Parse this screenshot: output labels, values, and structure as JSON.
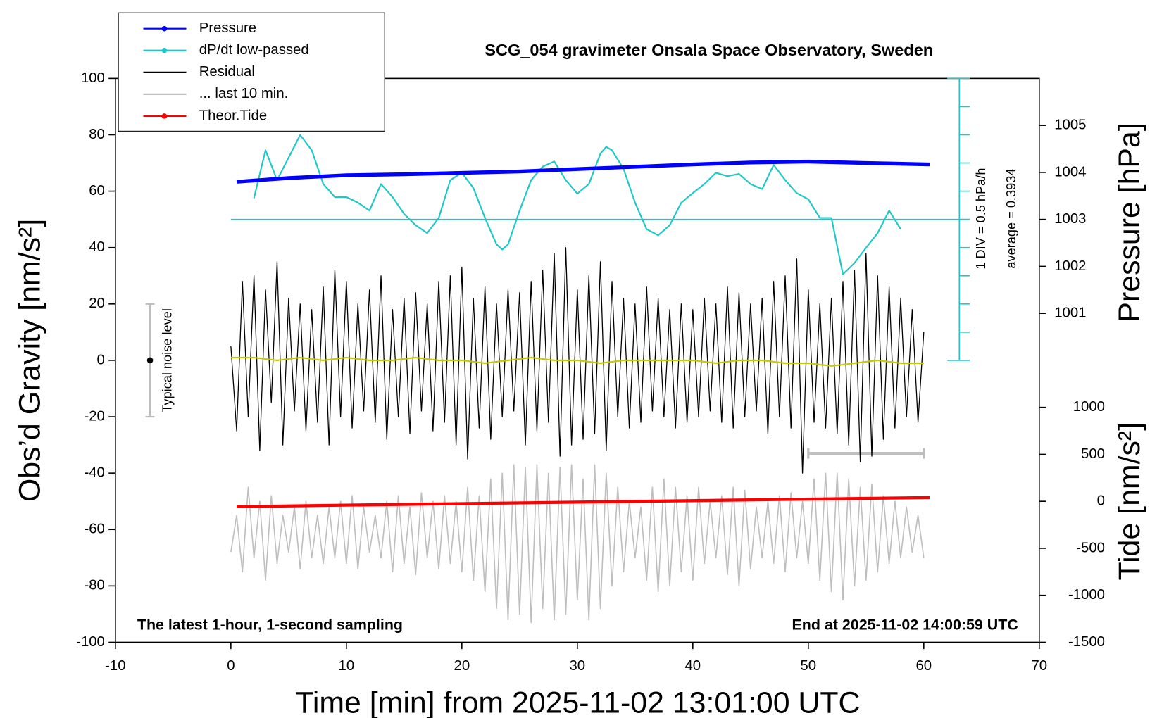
{
  "chart_data": {
    "type": "line",
    "title": "SCG_054 gravimeter Onsala Space Observatory, Sweden",
    "x_label": "Time [min] from 2025-11-02 13:01:00 UTC",
    "y_label": "Obs’d Gravity [nm/s²]",
    "y2_label": "Pressure [hPa]",
    "y3_label": "Tide [nm/s²]",
    "annotations": [
      "The latest 1-hour, 1-second sampling",
      "End at 2025-11-02 14:00:59 UTC",
      "1 DIV = 0.5 hPa/h",
      "average = 0.3934"
    ],
    "xlim": [
      -10,
      70
    ],
    "xticks": [
      -10,
      0,
      10,
      20,
      30,
      40,
      50,
      60,
      70
    ],
    "ylim": [
      -100,
      100
    ],
    "yticks": [
      -100,
      -80,
      -60,
      -40,
      -20,
      0,
      20,
      40,
      60,
      80,
      100
    ],
    "y2lim": [
      994,
      1006
    ],
    "y2ticks": [
      1001,
      1002,
      1003,
      1004,
      1005
    ],
    "y3lim": [
      -1500,
      4500
    ],
    "y3ticks": [
      -1500,
      -1000,
      -500,
      0,
      500,
      1000
    ],
    "y4lim": [
      -2.1066,
      2.8934
    ],
    "y4ticks": [
      -2.1066,
      -1.6066,
      -1.1066,
      -0.6066,
      -0.1066,
      0.3934,
      0.8934,
      1.3934,
      1.8934,
      2.3934,
      2.8934
    ],
    "y4_average": 0.3934,
    "legend": "upper left",
    "noise_level": {
      "x": -7,
      "range": [
        -20,
        20
      ],
      "label": "Typical noise level"
    },
    "window": {
      "x": [
        50,
        60
      ],
      "y": -33
    },
    "x": [
      0,
      0.5,
      1,
      1.5,
      2,
      2.5,
      3,
      3.5,
      4,
      4.5,
      5,
      5.5,
      6,
      6.5,
      7,
      7.5,
      8,
      8.5,
      9,
      9.5,
      10,
      10.5,
      11,
      11.5,
      12,
      12.5,
      13,
      13.5,
      14,
      14.5,
      15,
      15.5,
      16,
      16.5,
      17,
      17.5,
      18,
      18.5,
      19,
      19.5,
      20,
      20.5,
      21,
      21.5,
      22,
      22.5,
      23,
      23.5,
      24,
      24.5,
      25,
      25.5,
      26,
      26.5,
      27,
      27.5,
      28,
      28.5,
      29,
      29.5,
      30,
      30.5,
      31,
      31.5,
      32,
      32.5,
      33,
      33.5,
      34,
      34.5,
      35,
      35.5,
      36,
      36.5,
      37,
      37.5,
      38,
      38.5,
      39,
      39.5,
      40,
      40.5,
      41,
      41.5,
      42,
      42.5,
      43,
      43.5,
      44,
      44.5,
      45,
      45.5,
      46,
      46.5,
      47,
      47.5,
      48,
      48.5,
      49,
      49.5,
      50,
      50.5,
      51,
      51.5,
      52,
      52.5,
      53,
      53.5,
      54,
      54.5,
      55,
      55.5,
      56,
      56.5,
      57,
      57.5,
      58,
      58.5,
      59,
      59.5,
      60
    ],
    "series": [
      {
        "name": "Pressure",
        "color": "#0000ff",
        "axis": "y2",
        "marker": "circle",
        "width": 5,
        "x": [
          0.5,
          5,
          10,
          15,
          20,
          25,
          30,
          35,
          40,
          45,
          50,
          55,
          60.5
        ],
        "values": [
          1003.8,
          1003.88,
          1003.94,
          1003.96,
          1003.99,
          1004.02,
          1004.07,
          1004.12,
          1004.17,
          1004.21,
          1004.23,
          1004.2,
          1004.17
        ]
      },
      {
        "name": "dP/dt low-passed",
        "color": "#1ec8c8",
        "axis": "y4",
        "marker": "circle",
        "width": 2,
        "x": [
          2,
          3,
          4,
          6,
          7,
          8,
          9,
          10,
          11,
          12,
          13,
          14,
          15,
          16,
          17,
          18,
          19,
          20,
          21,
          22,
          23,
          23.5,
          24,
          25,
          26,
          27,
          28,
          29,
          30,
          31,
          32,
          32.5,
          33,
          34,
          35,
          36,
          37,
          38,
          39,
          40,
          41,
          42,
          43,
          44,
          45,
          46,
          47,
          48,
          49,
          50,
          51,
          52,
          53,
          54,
          55,
          56,
          57,
          58
        ],
        "values": [
          0.77,
          1.62,
          1.09,
          1.89,
          1.62,
          1.02,
          0.79,
          0.79,
          0.69,
          0.55,
          1.02,
          0.79,
          0.49,
          0.29,
          0.15,
          0.42,
          1.09,
          1.22,
          0.95,
          0.42,
          -0.05,
          -0.14,
          -0.05,
          0.55,
          1.09,
          1.33,
          1.42,
          1.09,
          0.85,
          1.02,
          1.56,
          1.68,
          1.62,
          1.29,
          0.69,
          0.22,
          0.11,
          0.29,
          0.69,
          0.86,
          1.02,
          1.22,
          1.16,
          1.2,
          1.02,
          0.93,
          1.36,
          1.09,
          0.86,
          0.75,
          0.42,
          0.42,
          -0.58,
          -0.38,
          -0.11,
          0.15,
          0.55,
          0.22
        ]
      },
      {
        "name": "Residual",
        "color": "#000000",
        "axis": "y",
        "width": 1.2,
        "values": [
          5,
          -25,
          28,
          -20,
          30,
          -32,
          25,
          -15,
          35,
          -30,
          22,
          -18,
          20,
          -25,
          18,
          -22,
          26,
          -30,
          32,
          -20,
          28,
          -24,
          20,
          -18,
          25,
          -22,
          30,
          -28,
          18,
          -20,
          22,
          -26,
          24,
          -18,
          20,
          -25,
          28,
          -22,
          30,
          -30,
          33,
          -35,
          22,
          -24,
          26,
          -28,
          20,
          -20,
          25,
          -18,
          24,
          -30,
          28,
          -25,
          32,
          -22,
          38,
          -34,
          40,
          -30,
          25,
          -28,
          30,
          -26,
          35,
          -32,
          28,
          -20,
          22,
          -24,
          20,
          -22,
          26,
          -18,
          22,
          -20,
          18,
          -24,
          20,
          -22,
          18,
          -20,
          22,
          -18,
          20,
          -22,
          26,
          -24,
          24,
          -20,
          20,
          -18,
          22,
          -26,
          28,
          -20,
          30,
          -24,
          36,
          -40,
          25,
          -22,
          20,
          -24,
          22,
          -26,
          28,
          -30,
          32,
          -36,
          38,
          -34,
          30,
          -28,
          26,
          -24,
          22,
          -20,
          18,
          -22,
          10
        ]
      },
      {
        "color": "#c8c800",
        "axis": "y",
        "width": 2,
        "x": [
          0,
          2,
          4,
          6,
          8,
          10,
          12,
          14,
          16,
          18,
          20,
          22,
          24,
          26,
          28,
          30,
          32,
          34,
          36,
          38,
          40,
          42,
          44,
          46,
          48,
          50,
          52,
          54,
          56,
          58,
          60
        ],
        "values": [
          1,
          1,
          0,
          1,
          0,
          1,
          0,
          0,
          1,
          0,
          0,
          -1,
          0,
          1,
          0,
          0,
          -1,
          0,
          0,
          0,
          0,
          -1,
          0,
          0,
          -1,
          -1,
          -2,
          -1,
          0,
          -1,
          -1
        ]
      },
      {
        "name": "... last 10 min.",
        "color": "#bebebe",
        "axis": "y",
        "width": 1.5,
        "values": [
          -68,
          -55,
          -75,
          -45,
          -70,
          -50,
          -78,
          -48,
          -72,
          -55,
          -68,
          -52,
          -74,
          -50,
          -70,
          -55,
          -72,
          -52,
          -70,
          -50,
          -72,
          -48,
          -74,
          -52,
          -68,
          -55,
          -70,
          -50,
          -75,
          -48,
          -72,
          -52,
          -76,
          -47,
          -70,
          -50,
          -74,
          -48,
          -72,
          -50,
          -75,
          -45,
          -78,
          -48,
          -82,
          -42,
          -88,
          -40,
          -92,
          -37,
          -90,
          -38,
          -93,
          -37,
          -88,
          -40,
          -92,
          -38,
          -90,
          -37,
          -85,
          -42,
          -92,
          -37,
          -88,
          -40,
          -80,
          -45,
          -75,
          -50,
          -70,
          -52,
          -78,
          -45,
          -82,
          -42,
          -80,
          -45,
          -75,
          -48,
          -78,
          -45,
          -72,
          -50,
          -70,
          -48,
          -76,
          -45,
          -80,
          -46,
          -74,
          -52,
          -70,
          -50,
          -72,
          -48,
          -75,
          -47,
          -70,
          -50,
          -72,
          -42,
          -78,
          -40,
          -82,
          -40,
          -85,
          -42,
          -80,
          -45,
          -78,
          -44,
          -75,
          -48,
          -72,
          -50,
          -70,
          -52,
          -68,
          -55,
          -70
        ]
      },
      {
        "name": "Theor.Tide",
        "color": "#ff0000",
        "axis": "y3",
        "marker": "circle",
        "width": 4,
        "x": [
          0.5,
          60.5
        ],
        "values": [
          -56,
          40
        ]
      }
    ]
  }
}
